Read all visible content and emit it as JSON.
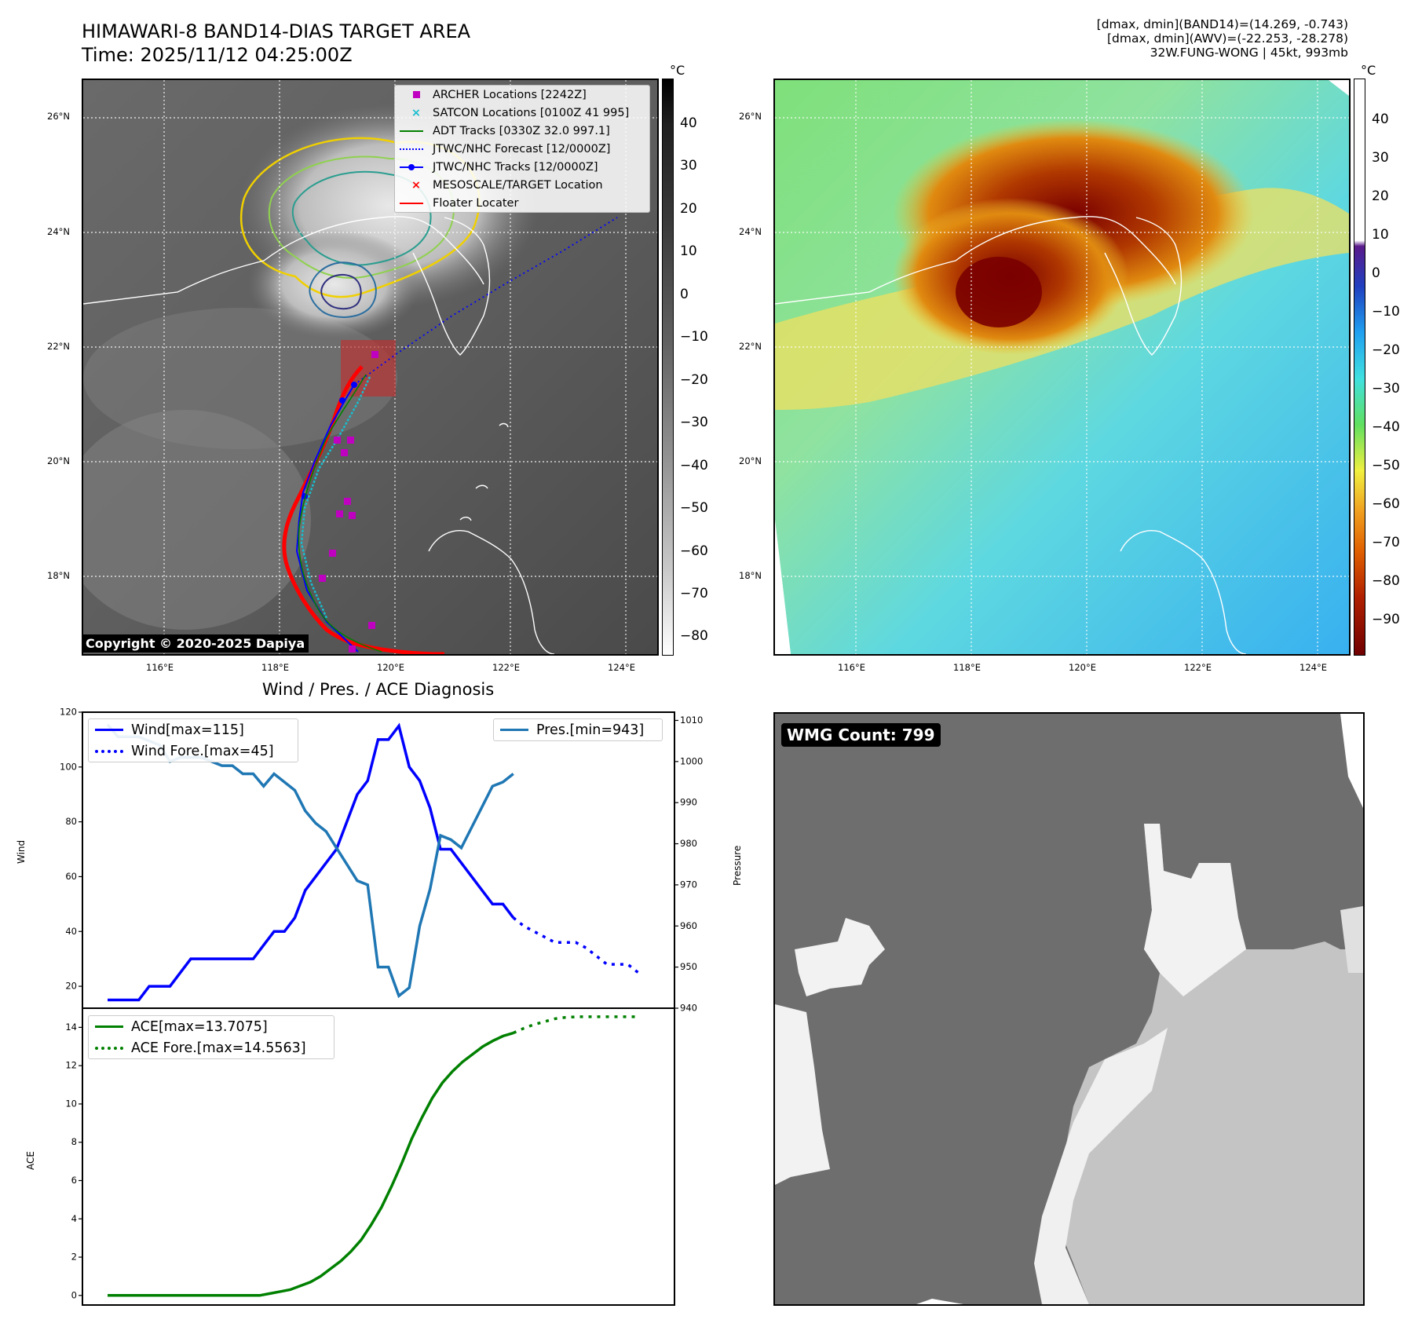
{
  "header": {
    "title_line1": "HIMAWARI-8 BAND14-DIAS TARGET AREA",
    "title_line2": "Time: 2025/11/12 04:25:00Z",
    "info_line1": "[dmax, dmin](BAND14)=(14.269, -0.743)",
    "info_line2": "[dmax, dmin](AWV)=(-22.253, -28.278)",
    "info_line3": "32W.FUNG-WONG | 45kt, 993mb"
  },
  "ir_panel": {
    "unit": "°C",
    "colorbar_ticks": [
      "40",
      "30",
      "20",
      "10",
      "0",
      "−10",
      "−20",
      "−30",
      "−40",
      "−50",
      "−60",
      "−70",
      "−80"
    ],
    "lat_ticks": [
      "26°N",
      "24°N",
      "22°N",
      "20°N",
      "18°N"
    ],
    "lon_ticks": [
      "116°E",
      "118°E",
      "120°E",
      "122°E",
      "124°E"
    ],
    "copyright": "Copyright © 2020-2025 Dapiya",
    "legend": [
      {
        "label": "ARCHER Locations [2242Z]",
        "color": "#c000c0",
        "marker": "square"
      },
      {
        "label": "SATCON Locations [0100Z 41 995]",
        "color": "#17becf",
        "marker": "x"
      },
      {
        "label": "ADT Tracks [0330Z 32.0 997.1]",
        "color": "#008000",
        "marker": "line"
      },
      {
        "label": "JTWC/NHC Forecast [12/0000Z]",
        "color": "#0000ff",
        "marker": "dotted"
      },
      {
        "label": "JTWC/NHC Tracks [12/0000Z]",
        "color": "#0000ff",
        "marker": "line-dot"
      },
      {
        "label": "MESOSCALE/TARGET Location",
        "color": "#ff0000",
        "marker": "x-bold"
      },
      {
        "label": "Floater Locater",
        "color": "#ff0000",
        "marker": "line"
      }
    ]
  },
  "wv_panel": {
    "unit": "°C",
    "colorbar_ticks": [
      "40",
      "30",
      "20",
      "10",
      "0",
      "−10",
      "−20",
      "−30",
      "−40",
      "−50",
      "−60",
      "−70",
      "−80",
      "−90"
    ],
    "lat_ticks": [
      "26°N",
      "24°N",
      "22°N",
      "20°N",
      "18°N"
    ],
    "lon_ticks": [
      "116°E",
      "118°E",
      "120°E",
      "122°E",
      "124°E"
    ]
  },
  "diagnosis": {
    "title": "Wind / Pres. / ACE Diagnosis",
    "wind_ylabel": "Wind",
    "pres_ylabel": "Pressure",
    "ace_ylabel": "ACE",
    "legend_wind": "Wind[max=115]",
    "legend_wind_fore": "Wind Fore.[max=45]",
    "legend_pres": "Pres.[min=943]",
    "legend_ace": "ACE[max=13.7075]",
    "legend_ace_fore": "ACE Fore.[max=14.5563]",
    "wind_ticks": [
      "120",
      "100",
      "80",
      "60",
      "40",
      "20"
    ],
    "pres_ticks": [
      "1010",
      "1000",
      "990",
      "980",
      "970",
      "960",
      "950",
      "940"
    ],
    "ace_ticks": [
      "14",
      "12",
      "10",
      "8",
      "6",
      "4",
      "2",
      "0"
    ]
  },
  "wmg_panel": {
    "label": "WMG Count: 799"
  },
  "chart_data": [
    {
      "type": "line",
      "title": "Wind / Pres. / ACE Diagnosis",
      "ylabel": "Wind",
      "ylim": [
        12,
        120
      ],
      "series": [
        {
          "name": "Wind[max=115]",
          "color": "#0000ff",
          "style": "solid",
          "values": [
            15,
            15,
            15,
            15,
            20,
            20,
            20,
            25,
            30,
            30,
            30,
            30,
            30,
            30,
            30,
            35,
            40,
            40,
            45,
            55,
            60,
            65,
            70,
            80,
            90,
            95,
            110,
            110,
            115,
            100,
            95,
            85,
            70,
            70,
            65,
            60,
            55,
            50,
            50,
            45
          ]
        },
        {
          "name": "Wind Fore.[max=45]",
          "color": "#0000ff",
          "style": "dotted",
          "values": [
            45,
            42,
            40,
            38,
            36,
            36,
            36,
            34,
            31,
            28,
            28,
            28,
            25
          ]
        }
      ]
    },
    {
      "type": "line",
      "ylabel": "Pressure",
      "ylim": [
        940,
        1012
      ],
      "series": [
        {
          "name": "Pres.[min=943]",
          "color": "#1f77b4",
          "style": "solid",
          "values": [
            1009,
            1006,
            1006,
            1006,
            1005,
            1004,
            1000,
            1001,
            1001,
            1001,
            1000,
            999,
            999,
            997,
            997,
            994,
            997,
            995,
            993,
            988,
            985,
            983,
            979,
            975,
            971,
            970,
            950,
            950,
            943,
            945,
            960,
            969,
            982,
            981,
            979,
            984,
            989,
            994,
            995,
            997
          ]
        }
      ]
    },
    {
      "type": "line",
      "ylabel": "ACE",
      "ylim": [
        -0.5,
        15
      ],
      "series": [
        {
          "name": "ACE[max=13.7075]",
          "color": "#008000",
          "style": "solid",
          "values": [
            0,
            0,
            0,
            0,
            0,
            0,
            0,
            0,
            0,
            0,
            0,
            0,
            0,
            0,
            0,
            0,
            0.1,
            0.2,
            0.3,
            0.5,
            0.7,
            1.0,
            1.4,
            1.8,
            2.3,
            2.9,
            3.7,
            4.6,
            5.7,
            6.9,
            8.2,
            9.3,
            10.3,
            11.1,
            11.7,
            12.2,
            12.6,
            13.0,
            13.3,
            13.55,
            13.7075
          ]
        },
        {
          "name": "ACE Fore.[max=14.5563]",
          "color": "#008000",
          "style": "dotted",
          "values": [
            13.7075,
            13.95,
            14.15,
            14.3,
            14.45,
            14.52,
            14.55,
            14.5563,
            14.5563,
            14.5563,
            14.5563,
            14.5563,
            14.5563
          ]
        }
      ]
    }
  ]
}
